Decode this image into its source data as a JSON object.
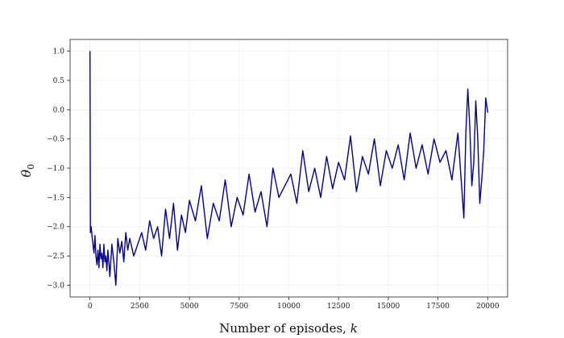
{
  "chart_data": {
    "type": "line",
    "title": "",
    "xlabel": "Number of episodes, k",
    "xlabel_text": "Number of episodes, ",
    "xlabel_var": "k",
    "ylabel": "θ0",
    "ylabel_symbol": "θ",
    "ylabel_sub": "0",
    "xlim": [
      -1000,
      21000
    ],
    "ylim": [
      -3.2,
      1.2
    ],
    "xticks": [
      0,
      2500,
      5000,
      7500,
      10000,
      12500,
      15000,
      17500,
      20000
    ],
    "yticks": [
      1.0,
      0.5,
      0.0,
      -0.5,
      -1.0,
      -1.5,
      -2.0,
      -2.5,
      -3.0
    ],
    "ytick_labels": [
      "1.0",
      "0.5",
      "0.0",
      "−0.5",
      "−1.0",
      "−1.5",
      "−2.0",
      "−2.5",
      "−3.0"
    ],
    "grid": true,
    "line_color": "#00008b",
    "series": [
      {
        "x": [
          0,
          20,
          60,
          100,
          150,
          200,
          250,
          300,
          350,
          400,
          450,
          500,
          550,
          600,
          650,
          700,
          750,
          800,
          850,
          900,
          950,
          1000,
          1100,
          1200,
          1300,
          1400,
          1500,
          1600,
          1700,
          1800,
          1900,
          2000,
          2200,
          2400,
          2600,
          2800,
          3000,
          3200,
          3400,
          3600,
          3800,
          4000,
          4200,
          4400,
          4600,
          4800,
          5000,
          5300,
          5600,
          5900,
          6200,
          6500,
          6800,
          7100,
          7400,
          7700,
          8000,
          8300,
          8600,
          8900,
          9200,
          9500,
          9800,
          10100,
          10400,
          10700,
          11000,
          11300,
          11600,
          11900,
          12200,
          12500,
          12800,
          13100,
          13400,
          13700,
          14000,
          14300,
          14600,
          14900,
          15200,
          15500,
          15800,
          16100,
          16400,
          16700,
          17000,
          17300,
          17600,
          17900,
          18200,
          18500,
          18800,
          18900,
          19000,
          19100,
          19200,
          19300,
          19400,
          19500,
          19600,
          19700,
          19800,
          19900,
          20000
        ],
        "y": [
          1.0,
          -2.1,
          -2.0,
          -2.15,
          -2.3,
          -2.45,
          -2.15,
          -2.5,
          -2.65,
          -2.4,
          -2.7,
          -2.3,
          -2.55,
          -2.45,
          -2.7,
          -2.3,
          -2.6,
          -2.5,
          -2.75,
          -2.4,
          -2.6,
          -2.85,
          -2.3,
          -2.6,
          -3.0,
          -2.2,
          -2.45,
          -2.25,
          -2.6,
          -2.1,
          -2.4,
          -2.2,
          -2.5,
          -2.3,
          -2.1,
          -2.4,
          -1.9,
          -2.2,
          -2.0,
          -2.5,
          -1.7,
          -2.2,
          -1.6,
          -2.4,
          -1.8,
          -2.1,
          -1.55,
          -1.9,
          -1.3,
          -2.2,
          -1.6,
          -1.9,
          -1.2,
          -2.0,
          -1.5,
          -1.8,
          -1.1,
          -1.75,
          -1.4,
          -2.0,
          -1.0,
          -1.5,
          -1.3,
          -1.1,
          -1.6,
          -0.7,
          -1.4,
          -1.0,
          -1.5,
          -0.8,
          -1.35,
          -0.9,
          -1.2,
          -0.45,
          -1.4,
          -0.8,
          -1.1,
          -0.5,
          -1.3,
          -0.7,
          -1.0,
          -0.6,
          -1.2,
          -0.4,
          -1.0,
          -0.6,
          -1.1,
          -0.5,
          -0.9,
          -0.7,
          -1.2,
          -0.4,
          -1.85,
          -0.4,
          0.35,
          -0.3,
          -1.3,
          -0.9,
          0.15,
          -0.5,
          -1.6,
          -1.2,
          -0.7,
          0.2,
          -0.05
        ]
      }
    ]
  }
}
